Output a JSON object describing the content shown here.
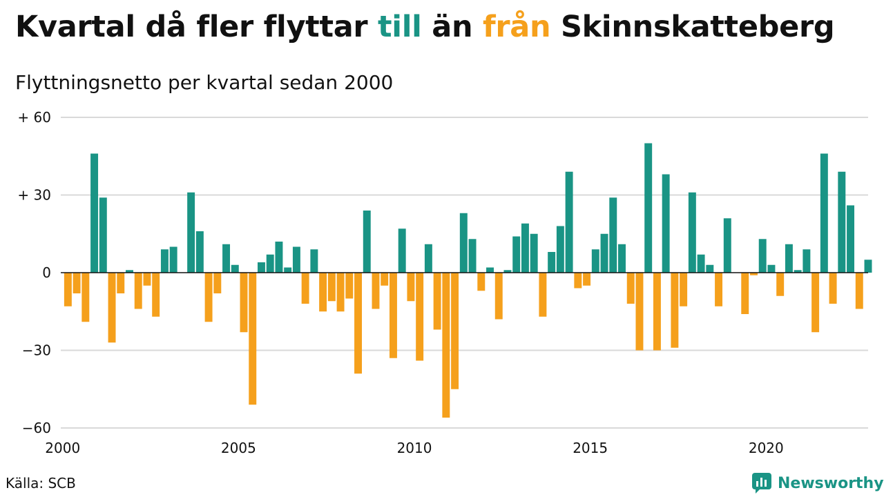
{
  "header": {
    "title_part1": "Kvartal då fler flyttar ",
    "title_till": "till",
    "title_part2": " än ",
    "title_fran": "från",
    "title_part3": " Skinnskatteberg",
    "subtitle": "Flyttningsnetto per kvartal sedan 2000"
  },
  "footer": {
    "source": "Källa: SCB",
    "brand": "Newsworthy"
  },
  "colors": {
    "positive": "#1a9485",
    "negative": "#f5a01c",
    "grid": "#d9d9d9",
    "zero": "#111111"
  },
  "chart_data": {
    "type": "bar",
    "title": "Kvartal då fler flyttar till än från Skinnskatteberg",
    "subtitle": "Flyttningsnetto per kvartal sedan 2000",
    "x_start": "2000 Q1",
    "ylim": [
      -60,
      60
    ],
    "yticks": [
      60,
      30,
      0,
      -30,
      -60
    ],
    "ytick_labels": [
      "+ 60",
      "+ 30",
      "0",
      "−30",
      "−60"
    ],
    "xticks": [
      "2000",
      "2005",
      "2010",
      "2015",
      "2020"
    ],
    "grid": true,
    "values": [
      -13,
      -8,
      -19,
      46,
      29,
      -27,
      -8,
      1,
      -14,
      -5,
      -17,
      9,
      10,
      0,
      31,
      16,
      -19,
      -8,
      11,
      3,
      -23,
      -51,
      4,
      7,
      12,
      2,
      10,
      -12,
      9,
      -15,
      -11,
      -15,
      -10,
      -39,
      24,
      -14,
      -5,
      -33,
      17,
      -11,
      -34,
      11,
      -22,
      -56,
      -45,
      23,
      13,
      -7,
      2,
      -18,
      1,
      14,
      19,
      15,
      -17,
      8,
      18,
      39,
      -6,
      -5,
      9,
      15,
      29,
      11,
      -12,
      -30,
      50,
      -30,
      38,
      -29,
      -13,
      31,
      7,
      3,
      -13,
      21,
      0,
      -16,
      -1,
      13,
      3,
      -9,
      11,
      1,
      9,
      -23,
      46,
      -12,
      39,
      26,
      -14,
      5
    ]
  }
}
